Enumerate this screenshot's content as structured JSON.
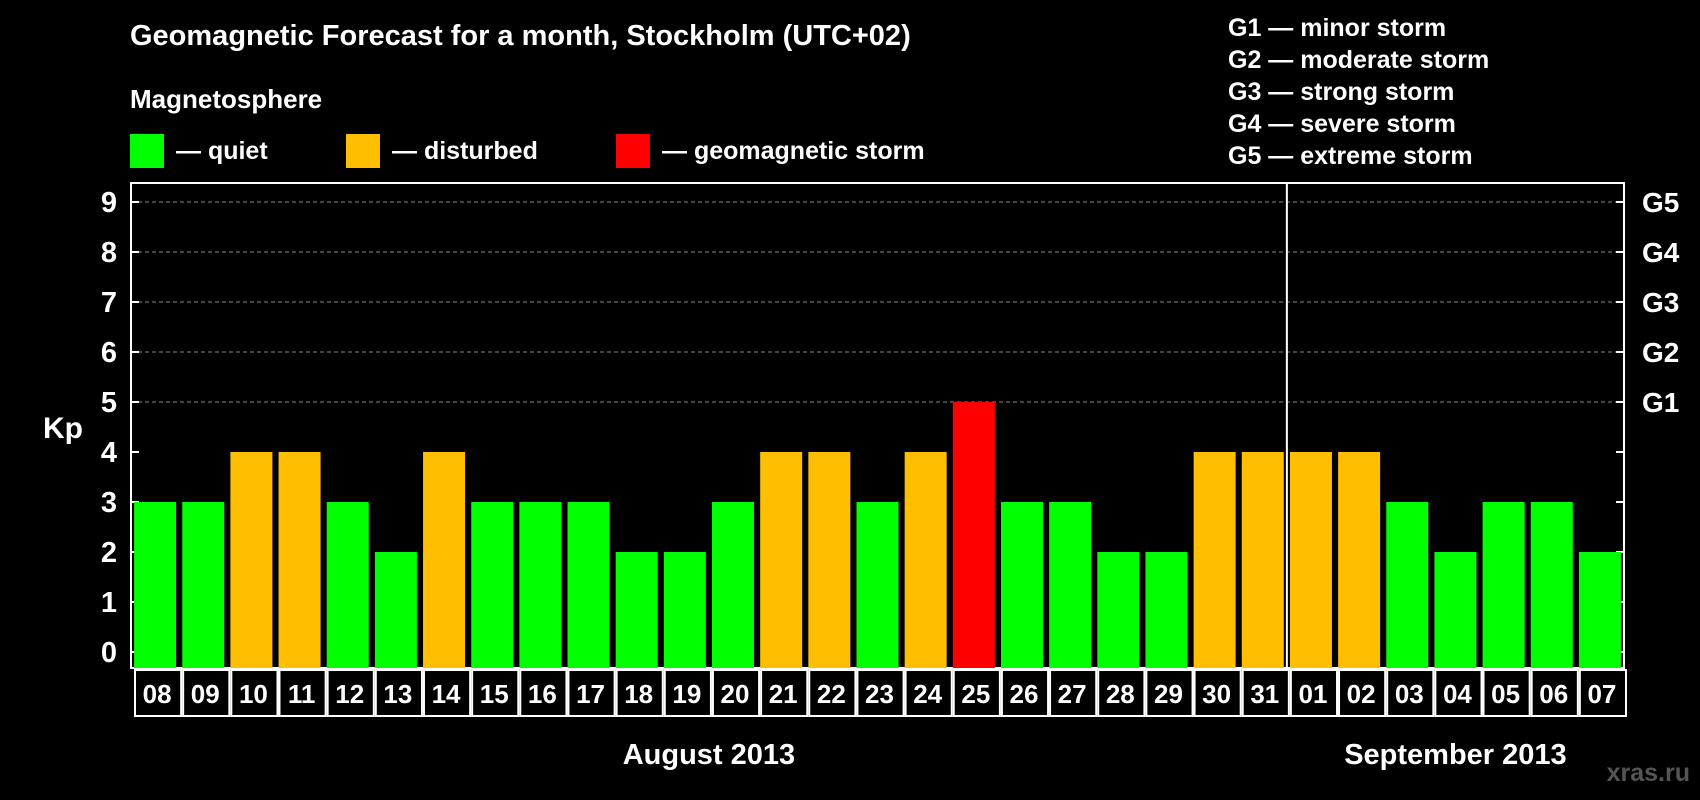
{
  "colors": {
    "quiet": "#00ff00",
    "disturbed": "#ffbf00",
    "storm": "#ff0000",
    "background": "#000000"
  },
  "chart_data": {
    "type": "bar",
    "title": "Geomagnetic Forecast for a month, Stockholm (UTC+02)",
    "magnetosphere_title": "Magnetosphere",
    "legend": [
      {
        "key": "quiet",
        "label": "— quiet"
      },
      {
        "key": "disturbed",
        "label": "— disturbed"
      },
      {
        "key": "storm",
        "label": "— geomagnetic storm"
      }
    ],
    "storm_scale": [
      "G1 — minor storm",
      "G2 — moderate storm",
      "G3 — strong storm",
      "G4 — severe storm",
      "G5 — extreme storm"
    ],
    "ylabel": "Kp",
    "ylim": [
      0,
      9
    ],
    "yticks": [
      "0",
      "1",
      "2",
      "3",
      "4",
      "5",
      "6",
      "7",
      "8",
      "9"
    ],
    "right_ticks": [
      {
        "kp": 5,
        "label": "G1"
      },
      {
        "kp": 6,
        "label": "G2"
      },
      {
        "kp": 7,
        "label": "G3"
      },
      {
        "kp": 8,
        "label": "G4"
      },
      {
        "kp": 9,
        "label": "G5"
      }
    ],
    "grid_lines": [
      5,
      6,
      7,
      8,
      9
    ],
    "categories": [
      "08",
      "09",
      "10",
      "11",
      "12",
      "13",
      "14",
      "15",
      "16",
      "17",
      "18",
      "19",
      "20",
      "21",
      "22",
      "23",
      "24",
      "25",
      "26",
      "27",
      "28",
      "29",
      "30",
      "31",
      "01",
      "02",
      "03",
      "04",
      "05",
      "06",
      "07"
    ],
    "values": [
      3,
      3,
      4,
      4,
      3,
      2,
      4,
      3,
      3,
      3,
      2,
      2,
      3,
      4,
      4,
      3,
      4,
      5,
      3,
      3,
      2,
      2,
      4,
      4,
      4,
      4,
      3,
      2,
      3,
      3,
      2
    ],
    "levels": [
      "quiet",
      "quiet",
      "disturbed",
      "disturbed",
      "quiet",
      "quiet",
      "disturbed",
      "quiet",
      "quiet",
      "quiet",
      "quiet",
      "quiet",
      "quiet",
      "disturbed",
      "disturbed",
      "quiet",
      "disturbed",
      "storm",
      "quiet",
      "quiet",
      "quiet",
      "quiet",
      "disturbed",
      "disturbed",
      "disturbed",
      "disturbed",
      "quiet",
      "quiet",
      "quiet",
      "quiet",
      "quiet"
    ],
    "months": [
      {
        "label": "August 2013",
        "first_index": 0,
        "last_index": 23
      },
      {
        "label": "September 2013",
        "first_index": 24,
        "last_index": 30
      }
    ]
  },
  "watermark": "xras.ru"
}
